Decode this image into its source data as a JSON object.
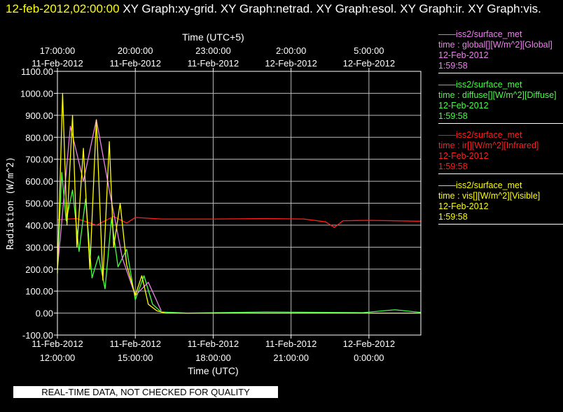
{
  "title": {
    "datetime": "12-feb-2012,02:00:00",
    "rest": "  XY Graph:xy-grid.  XY Graph:netrad.  XY Graph:esol.  XY Graph:ir.  XY Graph:vis."
  },
  "legend": [
    {
      "line1": "——iss2/surface_met",
      "line2": "time : global[][W/m^2][Global]",
      "line3": "12-Feb-2012",
      "line4": "1:59:58",
      "color": "#ee82ee"
    },
    {
      "line1": "——iss2/surface_met",
      "line2": "time : diffuse[][W/m^2][Diffuse]",
      "line3": "12-Feb-2012",
      "line4": "1:59:58",
      "color": "#44ff44"
    },
    {
      "line1": "——iss2/surface_met",
      "line2": "time : ir[][W/m^2][Infrared]",
      "line3": "12-Feb-2012",
      "line4": "1:59:58",
      "color": "#ff2020"
    },
    {
      "line1": "——iss2/surface_met",
      "line2": "time : vis[][W/m^2][Visible]",
      "line3": "12-Feb-2012",
      "line4": "1:59:58",
      "color": "#ffff00"
    }
  ],
  "disclaimer": "REAL-TIME DATA, NOT CHECKED FOR QUALITY",
  "chart_data": {
    "type": "line",
    "xlabel_bottom": "Time (UTC)",
    "xlabel_top": "Time (UTC+5)",
    "ylabel": "Radiation (W/m^2)",
    "x_range_hours_utc": [
      "11-Feb-2012 12:00:00",
      "12-Feb-2012 02:00:00"
    ],
    "ylim": [
      -100,
      1100
    ],
    "grid": true,
    "yticks": [
      "-100.00",
      "0.00",
      "100.00",
      "200.00",
      "300.00",
      "400.00",
      "500.00",
      "600.00",
      "700.00",
      "800.00",
      "900.00",
      "1000.00",
      "1100.00"
    ],
    "bottom_ticks": [
      {
        "date": "11-Feb-2012",
        "time": "12:00:00"
      },
      {
        "date": "11-Feb-2012",
        "time": "15:00:00"
      },
      {
        "date": "11-Feb-2012",
        "time": "18:00:00"
      },
      {
        "date": "11-Feb-2012",
        "time": "21:00:00"
      },
      {
        "date": "12-Feb-2012",
        "time": "0:00:00"
      }
    ],
    "top_ticks": [
      {
        "time": "17:00:00",
        "date": "11-Feb-2012"
      },
      {
        "time": "20:00:00",
        "date": "11-Feb-2012"
      },
      {
        "time": "23:00:00",
        "date": "11-Feb-2012"
      },
      {
        "time": "2:00:00",
        "date": "12-Feb-2012"
      },
      {
        "time": "5:00:00",
        "date": "12-Feb-2012"
      }
    ],
    "series": [
      {
        "name": "global",
        "color": "#ee82ee",
        "x": [
          "11-Feb-2012 12:00",
          "11-Feb-2012 12:30",
          "11-Feb-2012 13:00",
          "11-Feb-2012 13:30",
          "11-Feb-2012 14:00",
          "11-Feb-2012 14:30",
          "11-Feb-2012 15:00",
          "11-Feb-2012 15:30",
          "11-Feb-2012 16:00"
        ],
        "values": [
          200,
          850,
          600,
          880,
          560,
          250,
          80,
          140,
          10
        ]
      },
      {
        "name": "diffuse",
        "color": "#44ff44",
        "x": [
          "11-Feb-2012 12:00",
          "11-Feb-2012 12:10",
          "11-Feb-2012 12:20",
          "11-Feb-2012 12:35",
          "11-Feb-2012 12:50",
          "11-Feb-2012 13:05",
          "11-Feb-2012 13:20",
          "11-Feb-2012 13:35",
          "11-Feb-2012 13:50",
          "11-Feb-2012 14:05",
          "11-Feb-2012 14:20",
          "11-Feb-2012 14:40",
          "11-Feb-2012 15:00",
          "11-Feb-2012 15:20",
          "11-Feb-2012 15:40",
          "11-Feb-2012 16:00",
          "11-Feb-2012 17:00",
          "11-Feb-2012 20:00",
          "11-Feb-2012 22:30",
          "11-Feb-2012 23:45",
          "12-Feb-2012 01:00",
          "12-Feb-2012 02:00"
        ],
        "values": [
          200,
          640,
          420,
          560,
          280,
          520,
          160,
          260,
          110,
          430,
          210,
          290,
          60,
          170,
          40,
          5,
          0,
          5,
          3,
          2,
          15,
          3
        ]
      },
      {
        "name": "ir",
        "color": "#ff2020",
        "x": [
          "11-Feb-2012 12:00",
          "11-Feb-2012 12:45",
          "11-Feb-2012 13:30",
          "11-Feb-2012 14:10",
          "11-Feb-2012 14:40",
          "11-Feb-2012 15:00",
          "11-Feb-2012 16:00",
          "11-Feb-2012 18:00",
          "11-Feb-2012 20:00",
          "11-Feb-2012 21:30",
          "11-Feb-2012 22:20",
          "11-Feb-2012 22:40",
          "11-Feb-2012 23:00",
          "12-Feb-2012 00:00",
          "12-Feb-2012 02:00"
        ],
        "values": [
          425,
          430,
          400,
          440,
          410,
          435,
          428,
          428,
          430,
          428,
          415,
          390,
          420,
          422,
          418
        ]
      },
      {
        "name": "vis",
        "color": "#ffff00",
        "x": [
          "11-Feb-2012 12:00",
          "11-Feb-2012 12:12",
          "11-Feb-2012 12:22",
          "11-Feb-2012 12:35",
          "11-Feb-2012 12:45",
          "11-Feb-2012 13:00",
          "11-Feb-2012 13:15",
          "11-Feb-2012 13:30",
          "11-Feb-2012 13:45",
          "11-Feb-2012 14:00",
          "11-Feb-2012 14:10",
          "11-Feb-2012 14:25",
          "11-Feb-2012 14:40",
          "11-Feb-2012 15:00",
          "11-Feb-2012 15:15",
          "11-Feb-2012 15:30",
          "11-Feb-2012 15:50",
          "11-Feb-2012 16:10",
          "11-Feb-2012 17:00",
          "11-Feb-2012 20:00",
          "11-Feb-2012 23:00",
          "12-Feb-2012 02:00"
        ],
        "values": [
          180,
          1000,
          400,
          900,
          300,
          750,
          200,
          880,
          150,
          780,
          300,
          500,
          220,
          80,
          170,
          40,
          10,
          0,
          0,
          0,
          0,
          0
        ]
      }
    ]
  }
}
